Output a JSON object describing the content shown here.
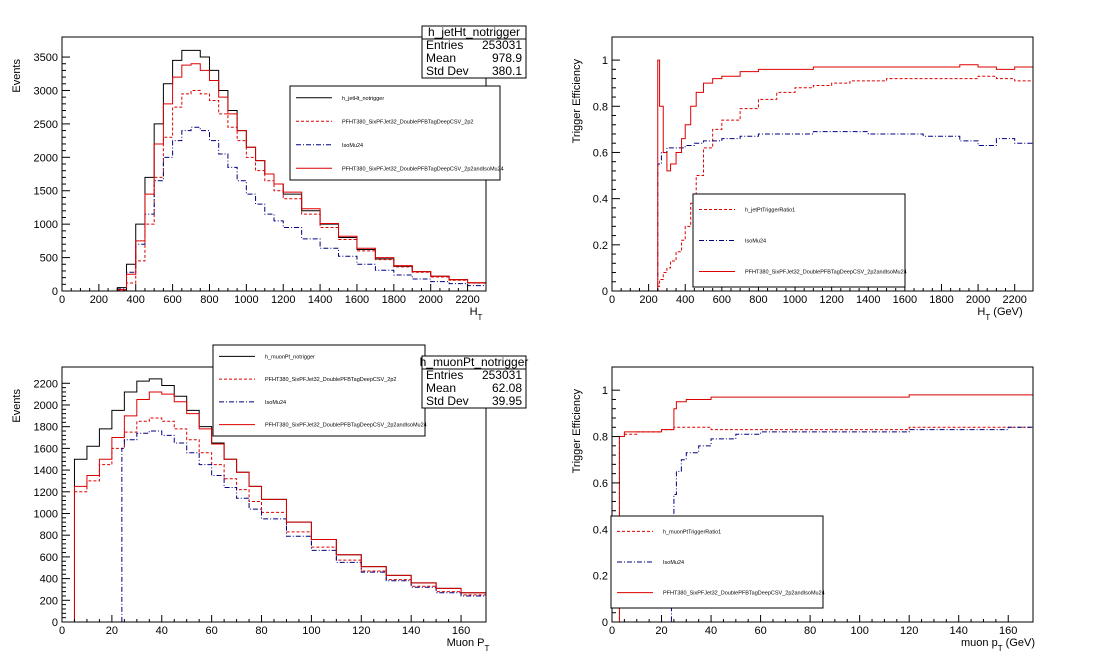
{
  "chart_data": [
    {
      "type": "line",
      "step": true,
      "xlabel": "H_T",
      "ylabel": "Events",
      "xlim": [
        0,
        2300
      ],
      "ylim": [
        0,
        3800
      ],
      "x_ticks": [
        0,
        200,
        400,
        600,
        800,
        1000,
        1200,
        1400,
        1600,
        1800,
        2000,
        2200
      ],
      "y_ticks": [
        0,
        500,
        1000,
        1500,
        2000,
        2500,
        3000,
        3500
      ],
      "stats": {
        "title": "h_jetHt_notrigger",
        "rows": [
          {
            "label": "Entries",
            "value": "253031"
          },
          {
            "label": "Mean",
            "value": "978.9"
          },
          {
            "label": "Std Dev",
            "value": "380.1"
          }
        ]
      },
      "legend_position": "top-right",
      "series": [
        {
          "name": "h_jetHt_notrigger",
          "color": "#000000",
          "dash": "solid",
          "x": [
            250,
            300,
            350,
            400,
            450,
            500,
            550,
            600,
            650,
            700,
            750,
            800,
            850,
            900,
            950,
            1000,
            1050,
            1100,
            1150,
            1200,
            1300,
            1400,
            1500,
            1600,
            1700,
            1800,
            1900,
            2000,
            2100,
            2200,
            2300
          ],
          "y": [
            0,
            50,
            400,
            1000,
            1700,
            2500,
            3100,
            3450,
            3600,
            3600,
            3500,
            3300,
            3000,
            2700,
            2400,
            2150,
            1950,
            1750,
            1600,
            1450,
            1200,
            1000,
            800,
            620,
            480,
            370,
            290,
            220,
            170,
            120,
            90
          ]
        },
        {
          "name": "PFHT380_SixPFJet32_DoublePFBTagDeepCSV_2p2",
          "color": "#dd0000",
          "dash": "dashed",
          "x": [
            250,
            300,
            350,
            400,
            450,
            500,
            550,
            600,
            650,
            700,
            750,
            800,
            850,
            900,
            950,
            1000,
            1050,
            1100,
            1150,
            1200,
            1300,
            1400,
            1500,
            1600,
            1700,
            1800,
            1900,
            2000,
            2100,
            2200,
            2300
          ],
          "y": [
            0,
            10,
            120,
            450,
            1000,
            1700,
            2300,
            2750,
            2950,
            3000,
            2950,
            2850,
            2650,
            2450,
            2250,
            2000,
            1800,
            1650,
            1500,
            1380,
            1150,
            950,
            770,
            600,
            470,
            360,
            280,
            210,
            160,
            120,
            85
          ]
        },
        {
          "name": "IsoMu24",
          "color": "#000080",
          "dash": "dashdot",
          "x": [
            250,
            300,
            350,
            400,
            450,
            500,
            550,
            600,
            650,
            700,
            750,
            800,
            850,
            900,
            950,
            1000,
            1050,
            1100,
            1150,
            1200,
            1300,
            1400,
            1500,
            1600,
            1700,
            1800,
            1900,
            2000,
            2100,
            2200,
            2300
          ],
          "y": [
            0,
            30,
            280,
            700,
            1150,
            1650,
            2000,
            2250,
            2400,
            2450,
            2400,
            2250,
            2050,
            1850,
            1650,
            1450,
            1300,
            1150,
            1050,
            950,
            780,
            640,
            520,
            400,
            310,
            240,
            180,
            140,
            110,
            80,
            60
          ]
        },
        {
          "name": "PFHT380_SixPFJet32_DoublePFBTagDeepCSV_2p2andIsoMu24",
          "color": "#dd0000",
          "dash": "solid",
          "x": [
            250,
            300,
            350,
            400,
            450,
            500,
            550,
            600,
            650,
            700,
            750,
            800,
            850,
            900,
            950,
            1000,
            1050,
            1100,
            1150,
            1200,
            1300,
            1400,
            1500,
            1600,
            1700,
            1800,
            1900,
            2000,
            2100,
            2200,
            2300
          ],
          "y": [
            0,
            20,
            250,
            750,
            1450,
            2200,
            2800,
            3200,
            3380,
            3400,
            3300,
            3150,
            2900,
            2650,
            2400,
            2150,
            1950,
            1750,
            1600,
            1480,
            1230,
            1010,
            820,
            640,
            500,
            380,
            290,
            220,
            170,
            125,
            90
          ]
        }
      ]
    },
    {
      "type": "line",
      "step": true,
      "xlabel": "H_T (GeV)",
      "ylabel": "Trigger Efficiency",
      "xlim": [
        0,
        2300
      ],
      "ylim": [
        0,
        1.1
      ],
      "x_ticks": [
        0,
        200,
        400,
        600,
        800,
        1000,
        1200,
        1400,
        1600,
        1800,
        2000,
        2200
      ],
      "y_ticks": [
        0,
        0.2,
        0.4,
        0.6,
        0.8,
        1
      ],
      "y_tick_labels": [
        "0",
        "0.2",
        "0.4",
        "0.6",
        "0.8",
        "1"
      ],
      "legend_position": "center",
      "series": [
        {
          "name": "h_jetPtTriggerRatio1",
          "color": "#dd0000",
          "dash": "dashed",
          "x": [
            0,
            240,
            250,
            260,
            280,
            300,
            320,
            350,
            380,
            400,
            430,
            460,
            500,
            550,
            600,
            700,
            800,
            900,
            1000,
            1100,
            1200,
            1300,
            1400,
            1500,
            1600,
            1700,
            1800,
            1900,
            2000,
            2100,
            2200,
            2300
          ],
          "y": [
            0,
            0,
            0.02,
            0.05,
            0.08,
            0.1,
            0.13,
            0.17,
            0.22,
            0.28,
            0.38,
            0.5,
            0.62,
            0.7,
            0.74,
            0.79,
            0.83,
            0.86,
            0.88,
            0.89,
            0.9,
            0.91,
            0.91,
            0.92,
            0.92,
            0.92,
            0.92,
            0.92,
            0.93,
            0.92,
            0.91,
            0.91
          ]
        },
        {
          "name": "IsoMu24",
          "color": "#000080",
          "dash": "dashdot",
          "x": [
            0,
            240,
            250,
            270,
            300,
            350,
            400,
            450,
            500,
            600,
            700,
            800,
            900,
            1000,
            1100,
            1200,
            1300,
            1400,
            1500,
            1600,
            1700,
            1800,
            1900,
            2000,
            2100,
            2200,
            2300
          ],
          "y": [
            0,
            0,
            0.55,
            0.6,
            0.62,
            0.62,
            0.63,
            0.64,
            0.65,
            0.66,
            0.67,
            0.68,
            0.68,
            0.68,
            0.69,
            0.69,
            0.69,
            0.68,
            0.68,
            0.68,
            0.67,
            0.67,
            0.65,
            0.63,
            0.66,
            0.64,
            0.63
          ]
        },
        {
          "name": "PFHT380_SixPFJet32_DoublePFBTagDeepCSV_2p2andIsoMu24",
          "color": "#dd0000",
          "dash": "solid",
          "x": [
            0,
            240,
            250,
            260,
            280,
            300,
            320,
            350,
            380,
            400,
            430,
            460,
            500,
            550,
            600,
            700,
            800,
            900,
            1000,
            1100,
            1200,
            1300,
            1400,
            1500,
            1600,
            1700,
            1800,
            1900,
            2000,
            2100,
            2200,
            2300
          ],
          "y": [
            0,
            0,
            1.0,
            0.8,
            0.6,
            0.52,
            0.55,
            0.6,
            0.66,
            0.72,
            0.8,
            0.86,
            0.9,
            0.92,
            0.93,
            0.95,
            0.96,
            0.96,
            0.96,
            0.97,
            0.97,
            0.97,
            0.97,
            0.97,
            0.97,
            0.97,
            0.97,
            0.98,
            0.97,
            0.96,
            0.97,
            0.97
          ]
        }
      ]
    },
    {
      "type": "line",
      "step": true,
      "xlabel": "Muon P_T",
      "ylabel": "Events",
      "xlim": [
        0,
        170
      ],
      "ylim": [
        0,
        2350
      ],
      "x_ticks": [
        0,
        20,
        40,
        60,
        80,
        100,
        120,
        140,
        160
      ],
      "y_ticks": [
        0,
        200,
        400,
        600,
        800,
        1000,
        1200,
        1400,
        1600,
        1800,
        2000,
        2200
      ],
      "stats": {
        "title": "h_muonPt_notrigger",
        "rows": [
          {
            "label": "Entries",
            "value": "253031"
          },
          {
            "label": "Mean",
            "value": "62.08"
          },
          {
            "label": "Std Dev",
            "value": "39.95"
          }
        ]
      },
      "legend_position": "top-center",
      "series": [
        {
          "name": "h_muonPt_notrigger",
          "color": "#000000",
          "dash": "solid",
          "x": [
            3,
            5,
            10,
            15,
            20,
            25,
            30,
            35,
            40,
            45,
            50,
            55,
            60,
            65,
            70,
            75,
            80,
            90,
            100,
            110,
            120,
            130,
            140,
            150,
            160,
            170
          ],
          "y": [
            0,
            1500,
            1620,
            1780,
            1950,
            2120,
            2220,
            2240,
            2180,
            2080,
            1950,
            1800,
            1650,
            1500,
            1380,
            1250,
            1130,
            920,
            760,
            620,
            510,
            430,
            360,
            310,
            270,
            250
          ]
        },
        {
          "name": "PFHT380_SixPFJet32_DoublePFBTagDeepCSV_2p2",
          "color": "#dd0000",
          "dash": "dashed",
          "x": [
            3,
            5,
            10,
            15,
            20,
            25,
            30,
            35,
            40,
            45,
            50,
            55,
            60,
            65,
            70,
            75,
            80,
            90,
            100,
            110,
            120,
            130,
            140,
            150,
            160,
            170
          ],
          "y": [
            0,
            1200,
            1300,
            1450,
            1600,
            1750,
            1850,
            1880,
            1850,
            1780,
            1680,
            1560,
            1450,
            1320,
            1220,
            1110,
            1010,
            830,
            690,
            570,
            470,
            390,
            330,
            280,
            250,
            230
          ]
        },
        {
          "name": "IsoMu24",
          "color": "#000080",
          "dash": "dashdot",
          "x": [
            0,
            23,
            24,
            25,
            30,
            35,
            40,
            45,
            50,
            55,
            60,
            65,
            70,
            75,
            80,
            90,
            100,
            110,
            120,
            130,
            140,
            150,
            160,
            170
          ],
          "y": [
            0,
            0,
            1600,
            1680,
            1740,
            1760,
            1720,
            1650,
            1560,
            1450,
            1350,
            1240,
            1140,
            1040,
            950,
            790,
            660,
            550,
            460,
            380,
            320,
            270,
            240,
            220
          ]
        },
        {
          "name": "PFHT380_SixPFJet32_DoublePFBTagDeepCSV_2p2andIsoMu24",
          "color": "#dd0000",
          "dash": "solid",
          "x": [
            3,
            5,
            10,
            15,
            20,
            25,
            30,
            35,
            40,
            45,
            50,
            55,
            60,
            65,
            70,
            75,
            80,
            90,
            100,
            110,
            120,
            130,
            140,
            150,
            160,
            170
          ],
          "y": [
            0,
            1250,
            1350,
            1500,
            1700,
            1900,
            2050,
            2120,
            2100,
            2030,
            1920,
            1780,
            1640,
            1500,
            1380,
            1250,
            1130,
            920,
            760,
            620,
            510,
            430,
            360,
            310,
            270,
            250
          ]
        }
      ]
    },
    {
      "type": "line",
      "step": true,
      "xlabel": "muon p_T (GeV)",
      "ylabel": "Trigger Efficiency",
      "xlim": [
        0,
        170
      ],
      "ylim": [
        0,
        1.1
      ],
      "x_ticks": [
        0,
        20,
        40,
        60,
        80,
        100,
        120,
        140,
        160
      ],
      "y_ticks": [
        0,
        0.2,
        0.4,
        0.6,
        0.8,
        1
      ],
      "y_tick_labels": [
        "0",
        "0.2",
        "0.4",
        "0.6",
        "0.8",
        "1"
      ],
      "legend_position": "bottom-left",
      "series": [
        {
          "name": "h_muonPtTriggerRatio1",
          "color": "#dd0000",
          "dash": "dashed",
          "x": [
            2,
            3,
            5,
            10,
            20,
            24,
            25,
            30,
            40,
            60,
            80,
            100,
            120,
            140,
            160,
            170
          ],
          "y": [
            0,
            0.8,
            0.81,
            0.82,
            0.83,
            0.83,
            0.84,
            0.84,
            0.83,
            0.83,
            0.83,
            0.83,
            0.84,
            0.84,
            0.84,
            0.83
          ]
        },
        {
          "name": "IsoMu24",
          "color": "#000080",
          "dash": "dashdot",
          "x": [
            0,
            23,
            24,
            25,
            26,
            28,
            30,
            35,
            40,
            50,
            60,
            80,
            100,
            120,
            140,
            160,
            170
          ],
          "y": [
            0,
            0,
            0.45,
            0.55,
            0.65,
            0.7,
            0.73,
            0.76,
            0.79,
            0.81,
            0.82,
            0.82,
            0.82,
            0.83,
            0.83,
            0.84,
            0.84
          ]
        },
        {
          "name": "PFHT380_SixPFJet32_DoublePFBTagDeepCSV_2p2andIsoMu24",
          "color": "#dd0000",
          "dash": "solid",
          "x": [
            2,
            3,
            5,
            10,
            20,
            24,
            25,
            26,
            30,
            40,
            60,
            80,
            100,
            120,
            140,
            160,
            170
          ],
          "y": [
            0,
            0.8,
            0.82,
            0.82,
            0.83,
            0.83,
            0.92,
            0.95,
            0.96,
            0.97,
            0.97,
            0.97,
            0.97,
            0.98,
            0.98,
            0.98,
            0.97
          ]
        }
      ]
    }
  ]
}
